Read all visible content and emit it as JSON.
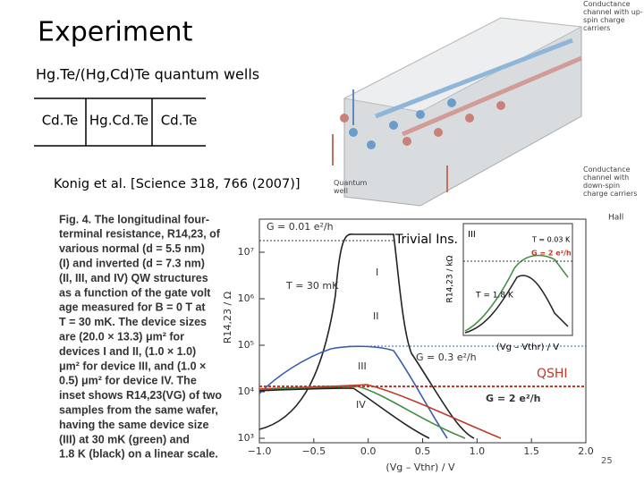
{
  "title": "Experiment",
  "subtitle": "Hg.Te/(Hg,Cd)Te quantum wells",
  "layers": [
    "Cd.Te",
    "Hg.Cd.Te",
    "Cd.Te"
  ],
  "citation": "Konig et al.  [Science 318, 766 (2007)]",
  "schematic": {
    "labels": [
      "Conductance channel with up-spin charge carriers",
      "Quantum well",
      "Conductance channel with down-spin charge carriers"
    ]
  },
  "caption": [
    "Fig. 4. The longitudinal four-",
    "terminal resistance, R14,23, of",
    "various normal (d = 5.5 nm)",
    "(I) and inverted (d = 7.3 nm)",
    "(II, III, and IV) QW structures",
    "as a function of the gate volt",
    "age measured for B = 0 T at",
    "T = 30 mK. The device sizes",
    "are (20.0 × 13.3) μm² for",
    "devices I and II, (1.0 × 1.0)",
    "μm² for device III, and (1.0 ×",
    "0.5) μm² for device IV. The",
    "inset shows R14,23(VG) of two",
    "samples from the same wafer,",
    "having the same device size",
    "(III) at 30 mK (green) and",
    "1.8 K (black) on a linear scale."
  ],
  "figure": {
    "y_label": "R14,23 / Ω",
    "x_label": "(Vg – Vthr) / V",
    "xticks": [
      "−1.0",
      "−0.5",
      "0.0",
      "0.5",
      "1.0",
      "1.5",
      "2.0"
    ],
    "yticks": [
      "10³",
      "10⁴",
      "10⁵",
      "10⁶",
      "10⁷"
    ],
    "annotations": [
      "G = 0.01 e²/h",
      "T = 30 mK",
      "I",
      "II",
      "III",
      "IV",
      "G = 0.3 e²/h",
      "G = 2 e²/h",
      "Trivial Ins.",
      "QSHI",
      "Hall"
    ],
    "inset": {
      "label": "III",
      "t_low": "T = 0.03 K",
      "g": "G = 2 e²/h",
      "t_high": "T = 1.8 K",
      "y_label": "R14,23 / kΩ",
      "x_label": "(Vg – Vthr) / V"
    }
  },
  "slide_number": "25"
}
